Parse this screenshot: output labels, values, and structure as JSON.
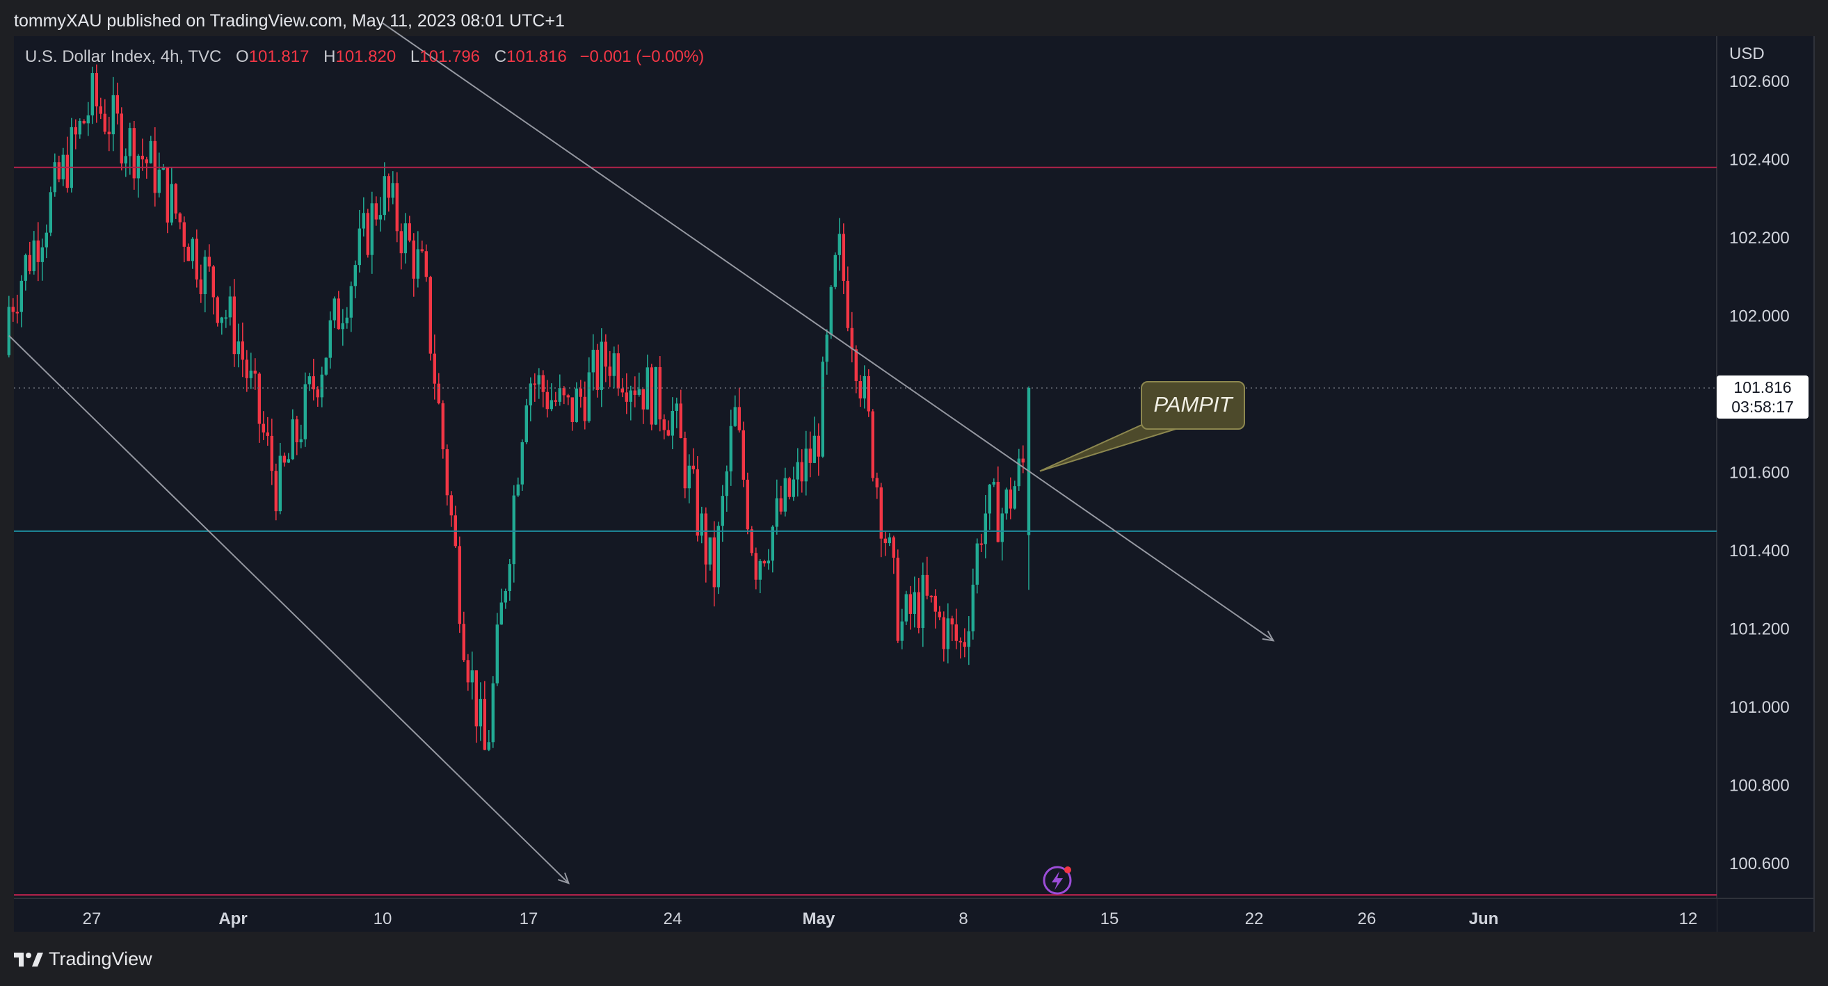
{
  "header": {
    "publish_line": "tommyXAU published on TradingView.com, May 11, 2023 08:01 UTC+1"
  },
  "legend": {
    "symbol": "U.S. Dollar Index, 4h, TVC",
    "open_label": "O",
    "open": "101.817",
    "high_label": "H",
    "high": "101.820",
    "low_label": "L",
    "low": "101.796",
    "close_label": "C",
    "close": "101.816",
    "change": "−0.001 (−0.00%)"
  },
  "price_axis": {
    "unit": "USD",
    "last_price": "101.816",
    "countdown": "03:58:17"
  },
  "annotation": {
    "text": "PAMPIT"
  },
  "footer": {
    "brand": "TradingView"
  },
  "colors": {
    "up": "#22ab94",
    "down": "#f23645",
    "background": "#141823",
    "resistance": "#b2224a",
    "support": "#1e8c9e",
    "trendline": "#9598a1",
    "callout": "#4d4a2b"
  },
  "chart_data": {
    "type": "candlestick",
    "interval": "4h",
    "y_unit": "USD",
    "ylim": [
      100.52,
      102.7
    ],
    "y_ticks": [
      "102.600",
      "102.400",
      "102.200",
      "102.000",
      "101.800",
      "101.600",
      "101.400",
      "101.200",
      "101.000",
      "100.800",
      "100.600"
    ],
    "x_ticks": [
      "27",
      "Apr",
      "10",
      "17",
      "24",
      "May",
      "8",
      "15",
      "22",
      "26",
      "Jun",
      "12"
    ],
    "horizontal_levels": [
      {
        "price": 102.38,
        "role": "resistance"
      },
      {
        "price": 101.45,
        "role": "support"
      },
      {
        "price": 100.52,
        "role": "bottom"
      }
    ],
    "last_price": 101.816,
    "anchors": [
      {
        "date": "Mar 23",
        "open": 102.15,
        "close": 101.9,
        "high": 102.3,
        "low": 101.75
      },
      {
        "date": "Mar 27",
        "open": 102.6,
        "close": 102.5,
        "high": 102.75,
        "low": 102.3
      },
      {
        "date": "Mar 30",
        "open": 102.5,
        "close": 102.25,
        "high": 102.65,
        "low": 102.1
      },
      {
        "date": "Apr 3",
        "open": 102.2,
        "close": 101.7,
        "high": 102.4,
        "low": 101.5
      },
      {
        "date": "Apr 5",
        "open": 101.6,
        "close": 101.5,
        "high": 101.7,
        "low": 101.45
      },
      {
        "date": "Apr 7",
        "open": 101.8,
        "close": 101.95,
        "high": 102.05,
        "low": 101.75
      },
      {
        "date": "Apr 10",
        "open": 102.1,
        "close": 102.55,
        "high": 102.7,
        "low": 102.0
      },
      {
        "date": "Apr 12",
        "open": 102.2,
        "close": 102.0,
        "high": 102.3,
        "low": 101.95
      },
      {
        "date": "Apr 14",
        "open": 101.45,
        "close": 100.9,
        "high": 101.55,
        "low": 100.8
      },
      {
        "date": "Apr 15",
        "open": 100.88,
        "close": 100.85,
        "high": 100.95,
        "low": 100.78
      },
      {
        "date": "Apr 17",
        "open": 101.5,
        "close": 102.2,
        "high": 102.25,
        "low": 101.4
      },
      {
        "date": "Apr 19",
        "open": 101.8,
        "close": 101.7,
        "high": 101.95,
        "low": 101.6
      },
      {
        "date": "Apr 21",
        "open": 102.0,
        "close": 101.8,
        "high": 102.2,
        "low": 101.7
      },
      {
        "date": "Apr 24",
        "open": 101.9,
        "close": 101.6,
        "high": 102.0,
        "low": 101.5
      },
      {
        "date": "Apr 26",
        "open": 101.3,
        "close": 101.35,
        "high": 101.45,
        "low": 101.2
      },
      {
        "date": "Apr 27",
        "open": 101.8,
        "close": 101.7,
        "high": 101.9,
        "low": 101.6
      },
      {
        "date": "Apr 28",
        "open": 101.45,
        "close": 101.3,
        "high": 101.5,
        "low": 101.0
      },
      {
        "date": "May 1",
        "open": 101.6,
        "close": 101.75,
        "high": 102.05,
        "low": 101.5
      },
      {
        "date": "May 2",
        "open": 102.15,
        "close": 102.2,
        "high": 102.4,
        "low": 102.05
      },
      {
        "date": "May 3",
        "open": 101.9,
        "close": 101.85,
        "high": 102.0,
        "low": 101.75
      },
      {
        "date": "May 5",
        "open": 101.3,
        "close": 101.1,
        "high": 101.45,
        "low": 101.05
      },
      {
        "date": "May 6",
        "open": 101.25,
        "close": 101.3,
        "high": 101.5,
        "low": 101.05
      },
      {
        "date": "May 8",
        "open": 101.2,
        "close": 101.1,
        "high": 101.3,
        "low": 101.05
      },
      {
        "date": "May 9",
        "open": 101.4,
        "close": 101.6,
        "high": 101.8,
        "low": 101.3
      },
      {
        "date": "May 10",
        "open": 101.55,
        "close": 101.45,
        "high": 101.78,
        "low": 101.25
      },
      {
        "date": "May 11",
        "open": 101.44,
        "close": 101.816,
        "high": 101.82,
        "low": 101.3
      }
    ],
    "drawings": [
      {
        "type": "arrow",
        "from": {
          "date": "Mar 23",
          "price": 101.95
        },
        "to": {
          "date": "Apr 19",
          "price": 100.55
        }
      },
      {
        "type": "arrow",
        "from": {
          "date": "Apr 10",
          "price": 102.75
        },
        "to": {
          "date": "May 23",
          "price": 101.17
        }
      },
      {
        "type": "callout",
        "text": "PAMPIT",
        "points_to": {
          "date": "May 11",
          "price": 101.6
        }
      }
    ]
  }
}
